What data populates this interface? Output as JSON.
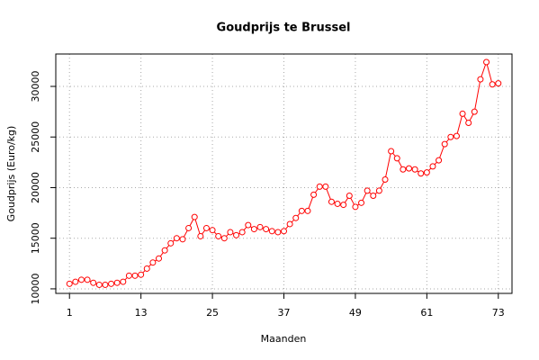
{
  "chart_data": {
    "type": "line",
    "title": "Goudprijs te Brussel",
    "x_label": "Maanden",
    "y_label": "Goudprijs (Euro/kg)",
    "x": [
      1,
      2,
      3,
      4,
      5,
      6,
      7,
      8,
      9,
      10,
      11,
      12,
      13,
      14,
      15,
      16,
      17,
      18,
      19,
      20,
      21,
      22,
      23,
      24,
      25,
      26,
      27,
      28,
      29,
      30,
      31,
      32,
      33,
      34,
      35,
      36,
      37,
      38,
      39,
      40,
      41,
      42,
      43,
      44,
      45,
      46,
      47,
      48,
      49,
      50,
      51,
      52,
      53,
      54,
      55,
      56,
      57,
      58,
      59,
      60,
      61,
      62,
      63,
      64,
      65,
      66,
      67,
      68,
      69,
      70,
      71,
      72,
      73
    ],
    "values": [
      10500,
      10700,
      10900,
      10900,
      10600,
      10400,
      10400,
      10500,
      10600,
      10700,
      11300,
      11300,
      11400,
      12000,
      12600,
      13000,
      13800,
      14500,
      15000,
      14900,
      16000,
      17100,
      15200,
      16000,
      15800,
      15200,
      15000,
      15600,
      15300,
      15600,
      16300,
      15900,
      16100,
      15900,
      15700,
      15600,
      15700,
      16400,
      17000,
      17700,
      17700,
      19300,
      20100,
      20100,
      18600,
      18400,
      18300,
      19200,
      18100,
      18500,
      19700,
      19200,
      19700,
      20800,
      23600,
      22900,
      21800,
      21900,
      21800,
      21400,
      21500,
      22100,
      22700,
      24300,
      25000,
      25100,
      27300,
      26400,
      27500,
      30700,
      32400,
      30200,
      30300
    ],
    "color": "#ff0000",
    "markers": true,
    "xlim": [
      -1.3,
      75.3
    ],
    "xticks": [
      1,
      13,
      25,
      37,
      49,
      61,
      73
    ],
    "ylim": [
      9550,
      33200
    ],
    "yticks": [
      10000,
      15000,
      20000,
      25000,
      30000
    ],
    "grid": true
  }
}
